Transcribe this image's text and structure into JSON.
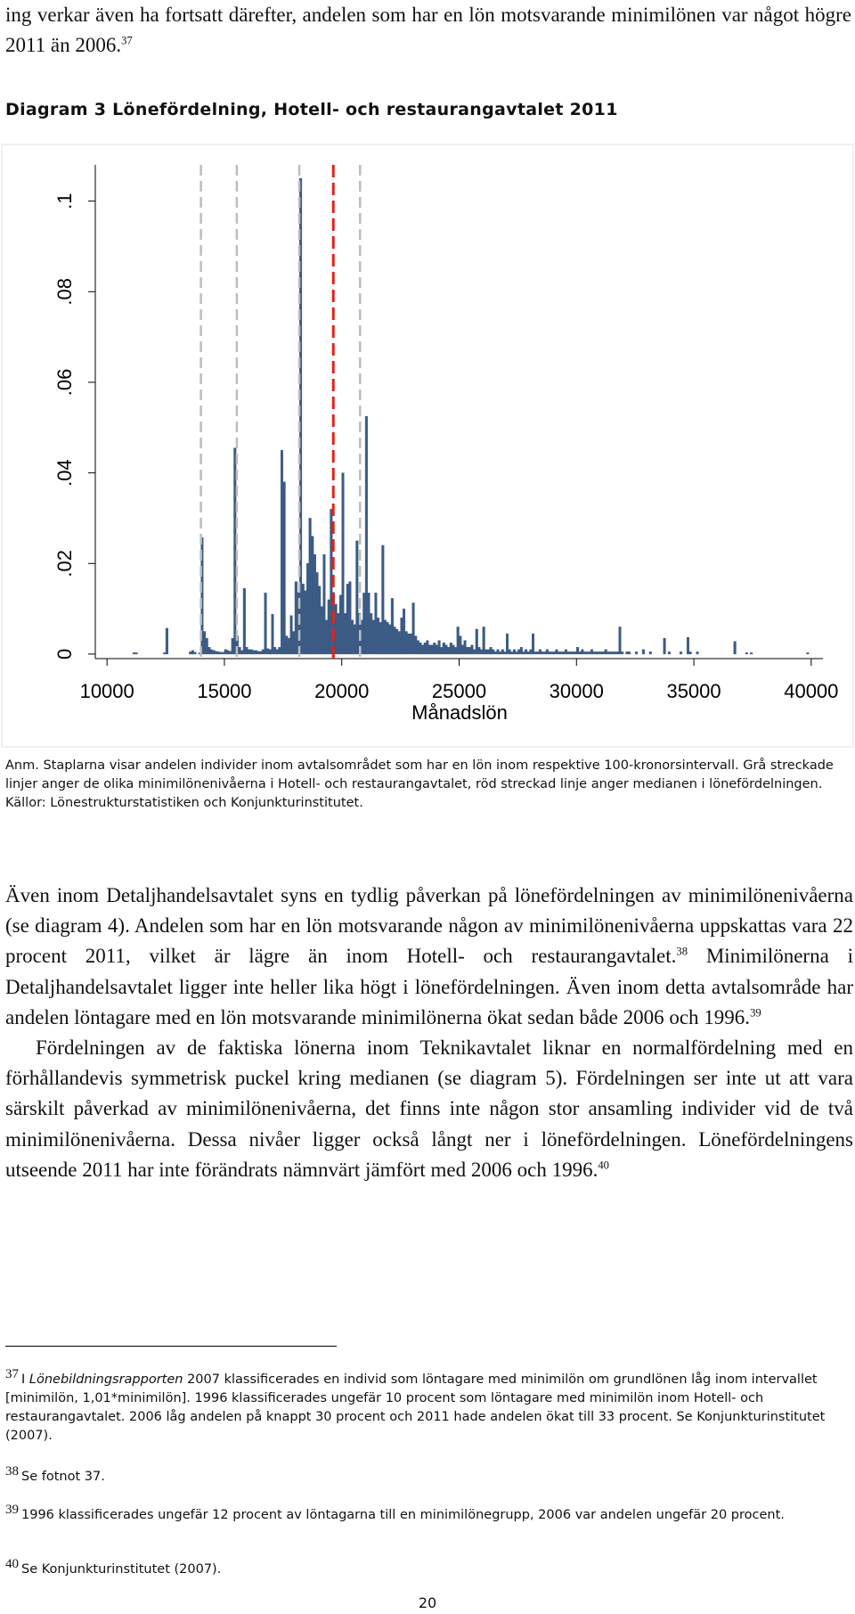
{
  "top_text": [
    "ing verkar även ha fortsatt därefter, andelen som har en lön motsvarande minimilönen var något högre 2011 än 2006.",
    "37"
  ],
  "chart_data": {
    "type": "histogram",
    "title": "Diagram 3 Lönefördelning, Hotell- och restaurangavtalet 2011",
    "x_label": "Månadslön",
    "color": "#3b5b85",
    "bins": [
      11000,
      11100,
      11200,
      11300,
      11400,
      11500,
      11600,
      11700,
      11800,
      11900,
      12000,
      12100,
      12200,
      12300,
      12400,
      12500,
      12600,
      12700,
      12800,
      12900,
      13000,
      13100,
      13200,
      13300,
      13400,
      13500,
      13600,
      13700,
      13800,
      13900,
      14000,
      14100,
      14200,
      14300,
      14400,
      14500,
      14600,
      14700,
      14800,
      14900,
      15000,
      15100,
      15200,
      15300,
      15400,
      15500,
      15600,
      15700,
      15800,
      15900,
      16000,
      16100,
      16200,
      16300,
      16400,
      16500,
      16600,
      16700,
      16800,
      16900,
      17000,
      17100,
      17200,
      17300,
      17400,
      17500,
      17600,
      17700,
      17800,
      17900,
      18000,
      18100,
      18200,
      18300,
      18400,
      18500,
      18600,
      18700,
      18800,
      18900,
      19000,
      19100,
      19200,
      19300,
      19400,
      19500,
      19600,
      19700,
      19800,
      19900,
      20000,
      20100,
      20200,
      20300,
      20400,
      20500,
      20600,
      20700,
      20800,
      20900,
      21000,
      21100,
      21200,
      21300,
      21400,
      21500,
      21600,
      21700,
      21800,
      21900,
      22000,
      22100,
      22200,
      22300,
      22400,
      22500,
      22600,
      22700,
      22800,
      22900,
      23000,
      23100,
      23200,
      23300,
      23400,
      23500,
      23600,
      23700,
      23800,
      23900,
      24000,
      24100,
      24200,
      24300,
      24400,
      24500,
      24600,
      24700,
      24800,
      24900,
      25000,
      25100,
      25200,
      25300,
      25400,
      25500,
      25600,
      25700,
      25800,
      25900,
      26000,
      26100,
      26200,
      26300,
      26400,
      26500,
      26600,
      26700,
      26800,
      26900,
      27000,
      27100,
      27200,
      27300,
      27400,
      27500,
      27600,
      27700,
      27800,
      27900,
      28000,
      28100,
      28200,
      28300,
      28400,
      28500,
      28600,
      28700,
      28800,
      28900,
      29000,
      29100,
      29200,
      29300,
      29400,
      29500,
      29600,
      29700,
      29800,
      29900,
      30000,
      30100,
      30200,
      30300,
      30400,
      30500,
      30600,
      30700,
      30800,
      30900,
      31000,
      31100,
      31200,
      31300,
      31400,
      31500,
      31600,
      31700,
      31800,
      31900,
      32000,
      32100,
      32200,
      32300,
      32400,
      32500,
      32600,
      32700,
      32800,
      32900,
      33000,
      33100,
      33200,
      33300,
      33400,
      33500,
      33600,
      33700,
      33800,
      33900,
      34000,
      34100,
      34200,
      34300,
      34400,
      34500,
      34600,
      34700,
      34800,
      34900,
      35000,
      35100,
      35200,
      35300,
      35400,
      35500,
      35600,
      35700,
      35800,
      35900,
      36000,
      36100,
      36200,
      36300,
      36400,
      36500,
      36600,
      36700,
      36800,
      36900,
      37000,
      37100,
      37200,
      37300,
      37400,
      37500,
      37600,
      37700,
      37800,
      37900,
      38000,
      38100,
      38200,
      38300,
      38400,
      38500,
      38600,
      38700,
      38800,
      38900,
      39000,
      39100,
      39200,
      39300,
      39400,
      39500,
      39600,
      39700,
      39800,
      39900,
      40000
    ],
    "values": [
      0,
      0.0003,
      0.0003,
      0,
      0,
      0,
      0,
      0,
      0,
      0,
      0,
      0,
      0,
      0,
      0.0003,
      0.0057,
      0,
      0,
      0,
      0,
      0,
      0,
      0,
      0,
      0,
      0.0005,
      0.0008,
      0.0004,
      0,
      0.0003,
      0.0257,
      0.005,
      0.0035,
      0.0015,
      0.001,
      0.0008,
      0.0006,
      0.0005,
      0.0004,
      0.0004,
      0.001,
      0.0008,
      0.0006,
      0.0035,
      0.0455,
      0.004,
      0.0015,
      0.0008,
      0.0145,
      0.0015,
      0.001,
      0.001,
      0.0008,
      0.0008,
      0.0006,
      0.0006,
      0.001,
      0.0135,
      0.0012,
      0.001,
      0.0088,
      0.0015,
      0.001,
      0.0015,
      0.045,
      0.038,
      0.004,
      0.0035,
      0.0085,
      0.005,
      0.016,
      0.0136,
      0.105,
      0.0155,
      0.014,
      0.02,
      0.03,
      0.026,
      0.022,
      0.018,
      0.015,
      0.0105,
      0.022,
      0.0075,
      0.012,
      0.032,
      0.0136,
      0.011,
      0.009,
      0.013,
      0.04,
      0.009,
      0.0155,
      0.016,
      0.0075,
      0.0065,
      0.025,
      0.009,
      0.0075,
      0.0135,
      0.0525,
      0.0135,
      0.009,
      0.0075,
      0.0135,
      0.008,
      0.007,
      0.024,
      0.0075,
      0.007,
      0.0065,
      0.0123,
      0.006,
      0.0055,
      0.005,
      0.008,
      0.01,
      0.005,
      0.0045,
      0.0045,
      0.0113,
      0.004,
      0.003,
      0.0025,
      0.002,
      0.0025,
      0.003,
      0.002,
      0.002,
      0.0025,
      0.002,
      0.003,
      0.0015,
      0.0025,
      0.002,
      0.0015,
      0.0025,
      0.002,
      0.0015,
      0.006,
      0.004,
      0.002,
      0.003,
      0.0015,
      0.0015,
      0.002,
      0.001,
      0.0055,
      0.0015,
      0.001,
      0.006,
      0.001,
      0.001,
      0.0015,
      0.001,
      0.0005,
      0.001,
      0.0005,
      0.001,
      0.0005,
      0.0045,
      0.001,
      0.0005,
      0.001,
      0.0005,
      0.001,
      0.0015,
      0.0005,
      0.001,
      0.0005,
      0.001,
      0.0045,
      0.0005,
      0.0005,
      0.001,
      0.0005,
      0.0005,
      0.001,
      0.0005,
      0.0005,
      0.0005,
      0.001,
      0.0005,
      0.0005,
      0.0005,
      0.001,
      0.0005,
      0.0005,
      0.0005,
      0.0005,
      0.0015,
      0.0005,
      0.001,
      0.0005,
      0.0005,
      0.0005,
      0.001,
      0.0005,
      0.0005,
      0.0005,
      0.0005,
      0.0005,
      0.001,
      0.0005,
      0.0005,
      0.0005,
      0.0005,
      0.0005,
      0.006,
      0.0005,
      0,
      0.0005,
      0.0005,
      0,
      0,
      0.0005,
      0,
      0,
      0.001,
      0,
      0,
      0.0005,
      0,
      0,
      0,
      0,
      0,
      0.0035,
      0,
      0.0005,
      0,
      0,
      0,
      0,
      0.0005,
      0,
      0,
      0.0037,
      0.0005,
      0,
      0,
      0.0005,
      0,
      0,
      0,
      0,
      0,
      0,
      0,
      0,
      0,
      0,
      0,
      0,
      0,
      0,
      0,
      0.0028,
      0,
      0,
      0,
      0,
      0.0003,
      0,
      0.0003,
      0,
      0,
      0,
      0,
      0,
      0,
      0,
      0,
      0,
      0,
      0,
      0,
      0,
      0,
      0,
      0,
      0,
      0,
      0,
      0,
      0,
      0,
      0,
      0.0003,
      0
    ],
    "xlim": [
      9500,
      40500
    ],
    "ylim": [
      -0.001,
      0.108
    ],
    "xticks": [
      10000,
      15000,
      20000,
      25000,
      30000,
      35000,
      40000
    ],
    "yticks": [
      0,
      {
        "value": 0.02,
        "label": ".02"
      },
      {
        "value": 0.04,
        "label": ".04"
      },
      {
        "value": 0.06,
        "label": ".06"
      },
      {
        "value": 0.08,
        "label": ".08"
      },
      {
        "value": 0.1,
        "label": ".1"
      }
    ],
    "grid": false,
    "reference_lines": {
      "values": [
        14000,
        15530,
        18190,
        20780
      ],
      "color": "#bdbdbd"
    },
    "median_line": {
      "value": 19640,
      "color": "#e0241b"
    }
  },
  "chart_notes": [
    "Anm. Staplarna visar andelen individer inom avtalsområdet som har en lön inom respektive 100-kronorsintervall. Grå streckade linjer anger de olika minimilönenivåerna i Hotell- och restaurangavtalet, röd streckad linje anger medianen i lönefördelningen.",
    "Källor: Lönestrukturstatistiken och Konjunkturinstitutet."
  ],
  "paragraphs": [
    [
      "Även inom Detaljhandelsavtalet syns en tydlig påverkan på lönefördelningen av minimilönenivåerna (se diagram 4). Andelen som har en lön motsvarande någon av minimilönenivåerna uppskattas vara 22 procent 2011, vilket är lägre än inom Hotell- och restaurangavtalet.",
      "38",
      " Minimilönerna i Detaljhandelsavtalet ligger inte heller lika högt i lönefördelningen. Även inom detta avtalsområde har andelen löntagare med en lön motsvarande minimilönerna ökat sedan både 2006 och 1996.",
      "39"
    ],
    [
      "Fördelningen av de faktiska lönerna inom Teknikavtalet liknar en normalfördelning med en förhållandevis symmetrisk puckel kring medianen (se diagram 5). Fördelningen ser inte ut att vara särskilt påverkad av minimilönenivåerna, det finns inte någon stor ansamling individer vid de två minimilönenivåerna. Dessa nivåer ligger också långt ner i lönefördelningen. Lönefördelningens utseende 2011 har inte förändrats nämnvärt jämfört med 2006 och 1996.",
      "40"
    ]
  ],
  "footnotes": [
    {
      "number": "37",
      "text": [
        "I ",
        "Lönebildningsrapporten",
        " 2007 klassificerades en individ som löntagare med minimilön om grundlönen låg inom intervallet [minimilön, 1,01*minimilön]. 1996 klassificerades ungefär 10 procent som löntagare med minimilön inom Hotell- och restaurangavtalet. 2006 låg andelen på knappt 30 procent och 2011 hade andelen ökat till 33 procent. Se Konjunkturinstitutet (2007)."
      ]
    },
    {
      "number": "38",
      "text": [
        "Se fotnot 37."
      ]
    },
    {
      "number": "39",
      "text": [
        "1996 klassificerades ungefär 12 procent av löntagarna till en minimilönegrupp, 2006 var andelen ungefär 20 procent."
      ]
    },
    {
      "number": "40",
      "text": [
        "Se Konjunkturinstitutet (2007)."
      ]
    }
  ],
  "page_number": "20"
}
